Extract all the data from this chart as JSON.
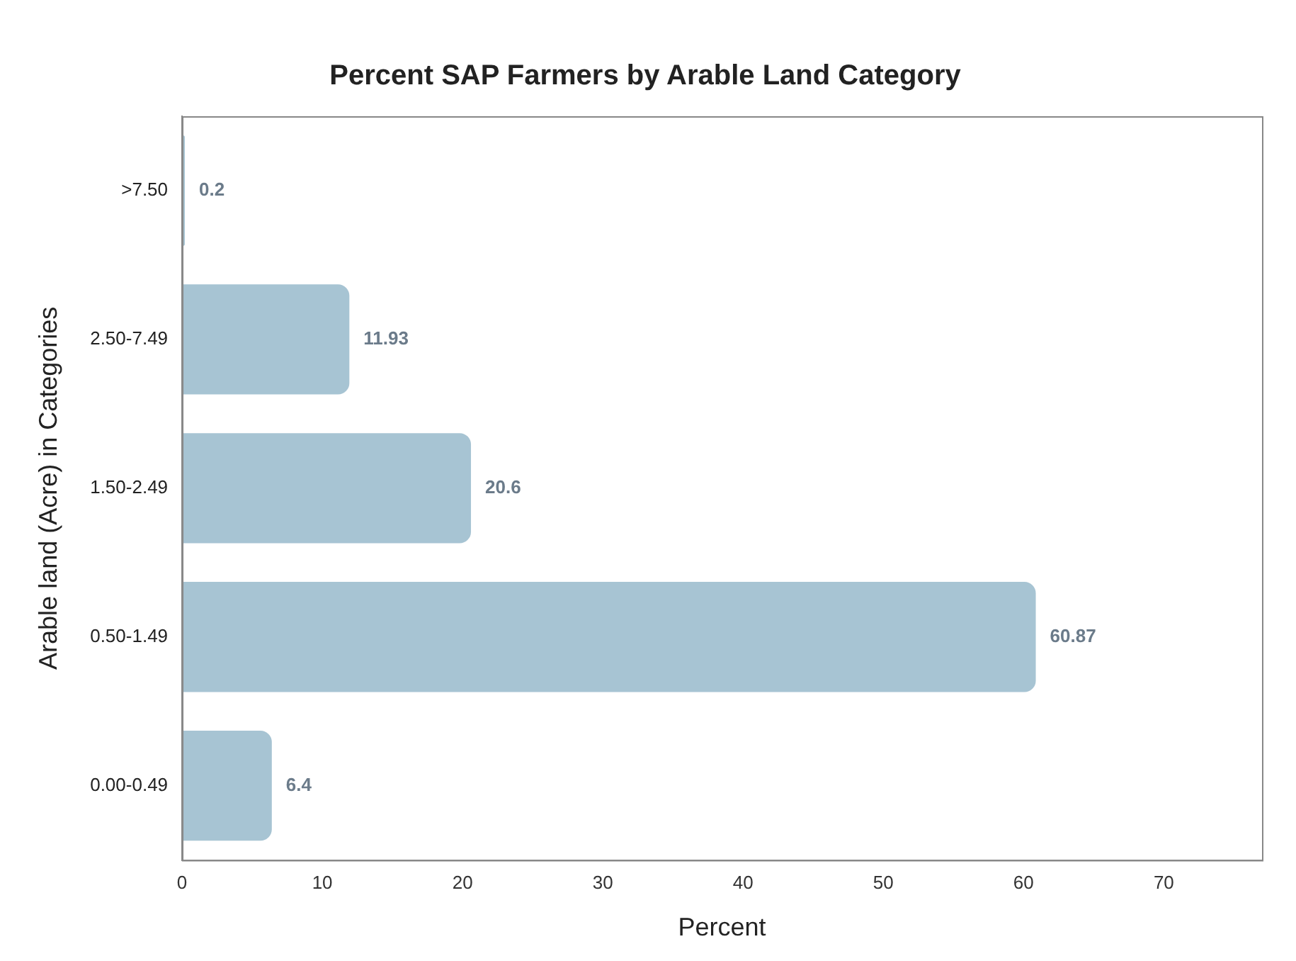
{
  "chart_data": {
    "type": "bar",
    "orientation": "horizontal",
    "title": "Percent SAP Farmers by Arable Land Category",
    "xlabel": "Percent",
    "ylabel": "Arable land (Acre) in Categories",
    "categories": [
      ">7.50",
      "2.50-7.49",
      "1.50-2.49",
      "0.50-1.49",
      "0.00-0.49"
    ],
    "values": [
      0.2,
      11.93,
      20.6,
      60.87,
      6.4
    ],
    "color": "#a7c4d3",
    "xlim": [
      0,
      77
    ],
    "xticks": [
      0,
      10,
      20,
      30,
      40,
      50,
      60,
      70
    ],
    "data_labels": true,
    "grid": false,
    "legend": false
  }
}
